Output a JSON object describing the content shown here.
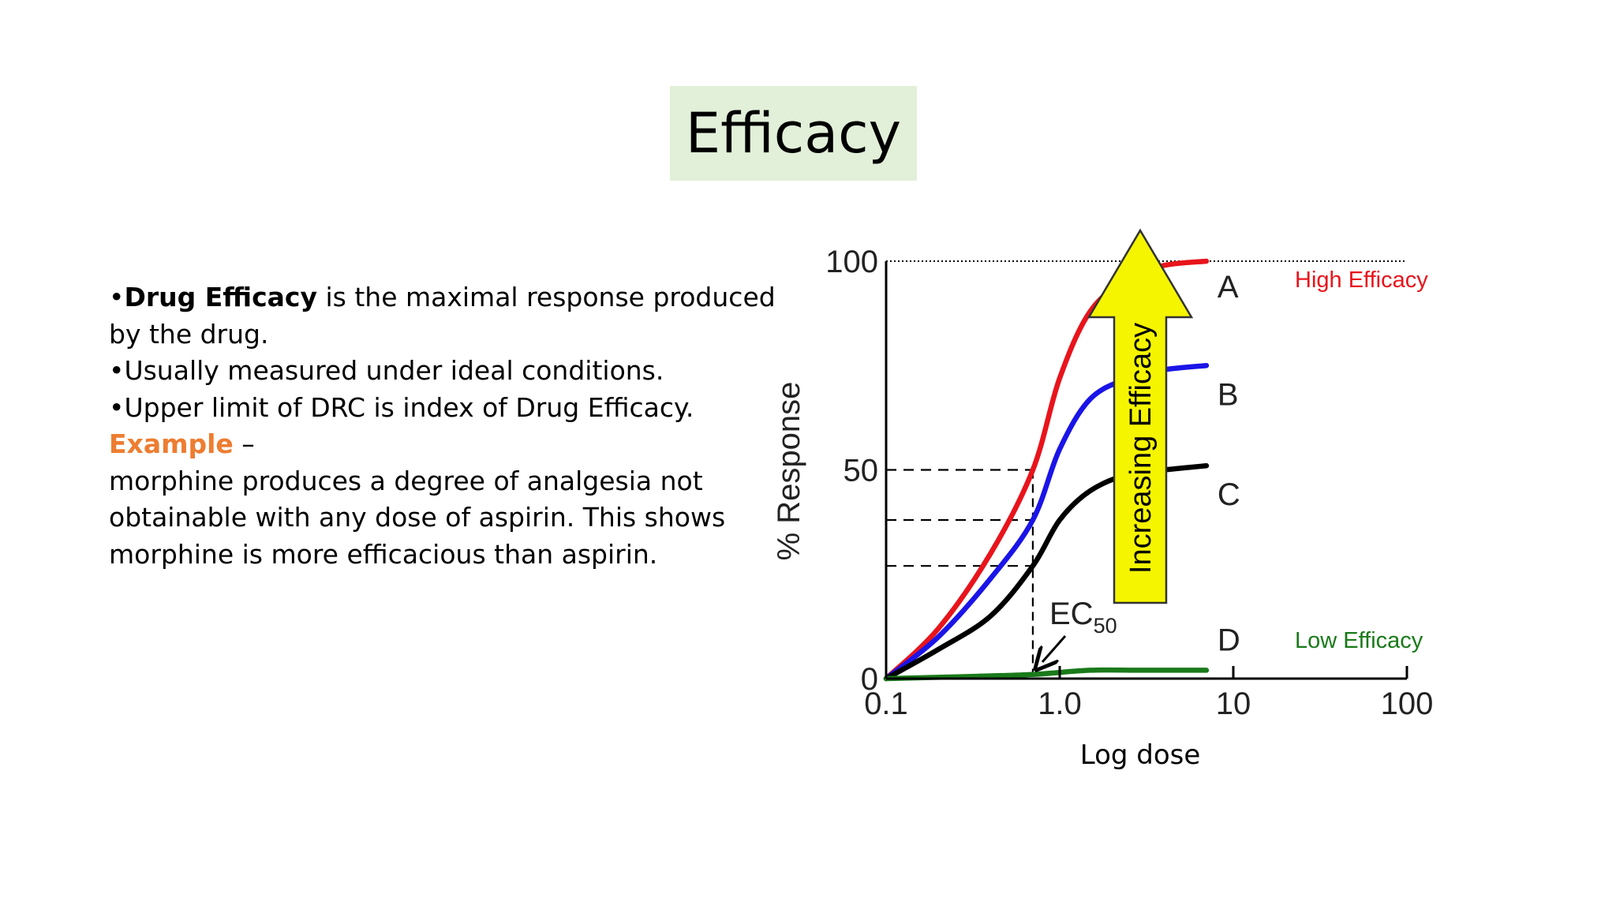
{
  "slide": {
    "title": "Efficacy",
    "bullets": [
      {
        "prefix": "•",
        "bold": "Drug Efficacy",
        "text": " is the maximal response produced"
      },
      {
        "text": "by the drug."
      },
      {
        "text": "•Usually measured under ideal conditions."
      },
      {
        "text": "•Upper limit of DRC is index of Drug Efficacy."
      }
    ],
    "example_label": "Example",
    "example_dash": " –",
    "example_lines": [
      "morphine produces a degree of analgesia not",
      "obtainable with any dose of aspirin. This shows",
      "morphine is more efficacious than aspirin."
    ]
  },
  "chart_data": {
    "type": "line",
    "xlabel": "Log dose",
    "ylabel": "% Response",
    "x_scale": "log",
    "xlim": [
      0.1,
      100
    ],
    "ylim": [
      0,
      100
    ],
    "x_ticks": [
      "0.1",
      "1.0",
      "10",
      "100"
    ],
    "x_tick_values": [
      0.1,
      1,
      10,
      100
    ],
    "y_ticks": [
      "0",
      "50",
      "100"
    ],
    "y_tick_values": [
      0,
      50,
      100
    ],
    "grid": false,
    "series": [
      {
        "name": "A",
        "color": "#e8141c",
        "x": [
          0.1,
          0.2,
          0.4,
          0.7,
          1.0,
          1.5,
          2.5,
          4,
          7
        ],
        "y": [
          0,
          12,
          30,
          50,
          72,
          88,
          96,
          99,
          100
        ]
      },
      {
        "name": "B",
        "color": "#1a14e8",
        "x": [
          0.1,
          0.2,
          0.4,
          0.7,
          1.0,
          1.5,
          2.5,
          4,
          7
        ],
        "y": [
          0,
          10,
          24,
          38,
          55,
          67,
          72,
          74,
          75
        ]
      },
      {
        "name": "C",
        "color": "#000000",
        "x": [
          0.1,
          0.2,
          0.4,
          0.7,
          1.0,
          1.5,
          2.5,
          4,
          7
        ],
        "y": [
          0,
          7,
          15,
          27,
          38,
          45,
          49,
          50,
          51
        ]
      },
      {
        "name": "D",
        "color": "#1a7a1a",
        "x": [
          0.1,
          0.3,
          0.7,
          1.5,
          3,
          7
        ],
        "y": [
          0,
          0.5,
          1,
          2,
          2,
          2
        ]
      }
    ],
    "reference_lines": {
      "max_response": 100,
      "dashed_levels": [
        50,
        38,
        27
      ],
      "ec50_x": 0.7
    },
    "annotations": {
      "arrow_label": "Increasing Efficacy",
      "arrow_color": "#f5f500",
      "high_label": "High Efficacy",
      "high_color": "#e8141c",
      "low_label": "Low Efficacy",
      "low_color": "#1a7a1a",
      "ec50_main": "EC",
      "ec50_sub": "50"
    }
  }
}
